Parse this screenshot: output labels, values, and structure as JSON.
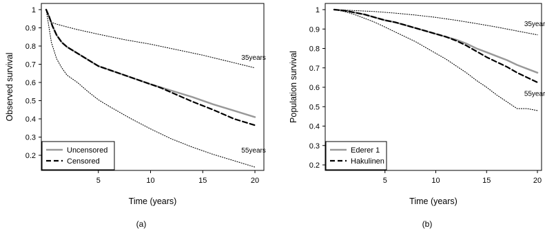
{
  "chart_data": [
    {
      "type": "line",
      "panel_label": "(a)",
      "xlabel": "Time (years)",
      "ylabel": "Observed survival",
      "xlim": [
        0,
        20
      ],
      "ylim": [
        0.1,
        1.0
      ],
      "xticks": [
        5,
        10,
        15,
        20
      ],
      "yticks": [
        0.2,
        0.3,
        0.4,
        0.5,
        0.6,
        0.7,
        0.8,
        0.9,
        1
      ],
      "legend_position": "bottom-left",
      "series": [
        {
          "name": "Uncensored",
          "style": "solid",
          "color": "#999999",
          "in_legend": true,
          "x": [
            0,
            0.3,
            0.6,
            1,
            1.5,
            2,
            3,
            4,
            5,
            6,
            8,
            10,
            12,
            14,
            16,
            18,
            20
          ],
          "y": [
            1.0,
            0.96,
            0.91,
            0.86,
            0.82,
            0.795,
            0.76,
            0.725,
            0.69,
            0.67,
            0.63,
            0.59,
            0.555,
            0.52,
            0.48,
            0.445,
            0.41
          ]
        },
        {
          "name": "Censored",
          "style": "dashed",
          "color": "#000000",
          "in_legend": true,
          "x": [
            0,
            0.3,
            0.6,
            1,
            1.5,
            2,
            3,
            4,
            5,
            6,
            8,
            10,
            11,
            12,
            14,
            16,
            18,
            20
          ],
          "y": [
            1.0,
            0.96,
            0.91,
            0.86,
            0.82,
            0.795,
            0.76,
            0.725,
            0.69,
            0.67,
            0.63,
            0.59,
            0.57,
            0.545,
            0.495,
            0.45,
            0.4,
            0.365
          ]
        },
        {
          "name": "35years",
          "style": "dotted",
          "color": "#000000",
          "in_legend": false,
          "x": [
            0,
            0.5,
            1,
            2,
            3,
            5,
            7.5,
            10,
            12.5,
            15,
            17.5,
            20
          ],
          "y": [
            1.0,
            0.93,
            0.92,
            0.905,
            0.89,
            0.865,
            0.835,
            0.81,
            0.78,
            0.75,
            0.715,
            0.68
          ]
        },
        {
          "name": "55years",
          "style": "dotted",
          "color": "#000000",
          "in_legend": false,
          "x": [
            0,
            0.5,
            1,
            1.5,
            2,
            3,
            4,
            5,
            6,
            8,
            10,
            12,
            14,
            16,
            18,
            20
          ],
          "y": [
            1.0,
            0.82,
            0.73,
            0.68,
            0.64,
            0.6,
            0.55,
            0.505,
            0.47,
            0.405,
            0.345,
            0.29,
            0.245,
            0.205,
            0.17,
            0.135
          ]
        }
      ],
      "annotations": [
        {
          "text": "35years",
          "x": 18.7,
          "y": 0.725
        },
        {
          "text": "55years",
          "x": 18.7,
          "y": 0.215
        }
      ]
    },
    {
      "type": "line",
      "panel_label": "(b)",
      "xlabel": "Time (years)",
      "ylabel": "Population survival",
      "xlim": [
        0,
        20
      ],
      "ylim": [
        0.15,
        1.02
      ],
      "xticks": [
        5,
        10,
        15,
        20
      ],
      "yticks": [
        0.2,
        0.3,
        0.4,
        0.5,
        0.6,
        0.7,
        0.8,
        0.9,
        1
      ],
      "legend_position": "bottom-left",
      "series": [
        {
          "name": "Ederer 1",
          "style": "solid",
          "color": "#999999",
          "in_legend": true,
          "x": [
            0,
            1,
            2,
            3,
            4,
            5,
            6,
            7,
            8,
            9,
            10,
            11,
            12,
            13,
            14,
            15,
            16,
            17,
            18,
            19,
            20
          ],
          "y": [
            1.0,
            0.995,
            0.985,
            0.975,
            0.96,
            0.945,
            0.935,
            0.92,
            0.905,
            0.89,
            0.875,
            0.86,
            0.845,
            0.825,
            0.8,
            0.78,
            0.76,
            0.74,
            0.715,
            0.695,
            0.675
          ]
        },
        {
          "name": "Hakulinen",
          "style": "dashed",
          "color": "#000000",
          "in_legend": true,
          "x": [
            0,
            1,
            2,
            3,
            4,
            5,
            6,
            7,
            8,
            9,
            10,
            11,
            12,
            13,
            14,
            15,
            16,
            17,
            18,
            19,
            20
          ],
          "y": [
            1.0,
            0.995,
            0.985,
            0.975,
            0.96,
            0.945,
            0.935,
            0.92,
            0.905,
            0.89,
            0.875,
            0.86,
            0.84,
            0.815,
            0.785,
            0.755,
            0.73,
            0.705,
            0.675,
            0.65,
            0.625
          ]
        },
        {
          "name": "35years",
          "style": "dotted",
          "color": "#000000",
          "in_legend": false,
          "x": [
            0,
            2,
            4,
            6,
            8,
            10,
            12,
            14,
            16,
            18,
            20
          ],
          "y": [
            1.0,
            0.995,
            0.99,
            0.982,
            0.972,
            0.96,
            0.945,
            0.928,
            0.91,
            0.89,
            0.87
          ]
        },
        {
          "name": "55years",
          "style": "dotted",
          "color": "#000000",
          "in_legend": false,
          "x": [
            0,
            1,
            2,
            3,
            4,
            5,
            6,
            7,
            8,
            9,
            10,
            11,
            12,
            13,
            14,
            15,
            16,
            17,
            18,
            19,
            20
          ],
          "y": [
            1.0,
            0.99,
            0.975,
            0.955,
            0.935,
            0.91,
            0.885,
            0.86,
            0.835,
            0.805,
            0.775,
            0.745,
            0.71,
            0.675,
            0.635,
            0.6,
            0.56,
            0.525,
            0.49,
            0.49,
            0.48
          ]
        }
      ],
      "annotations": [
        {
          "text": "35years",
          "x": 18.7,
          "y": 0.915
        },
        {
          "text": "55years",
          "x": 18.7,
          "y": 0.555
        }
      ]
    }
  ]
}
